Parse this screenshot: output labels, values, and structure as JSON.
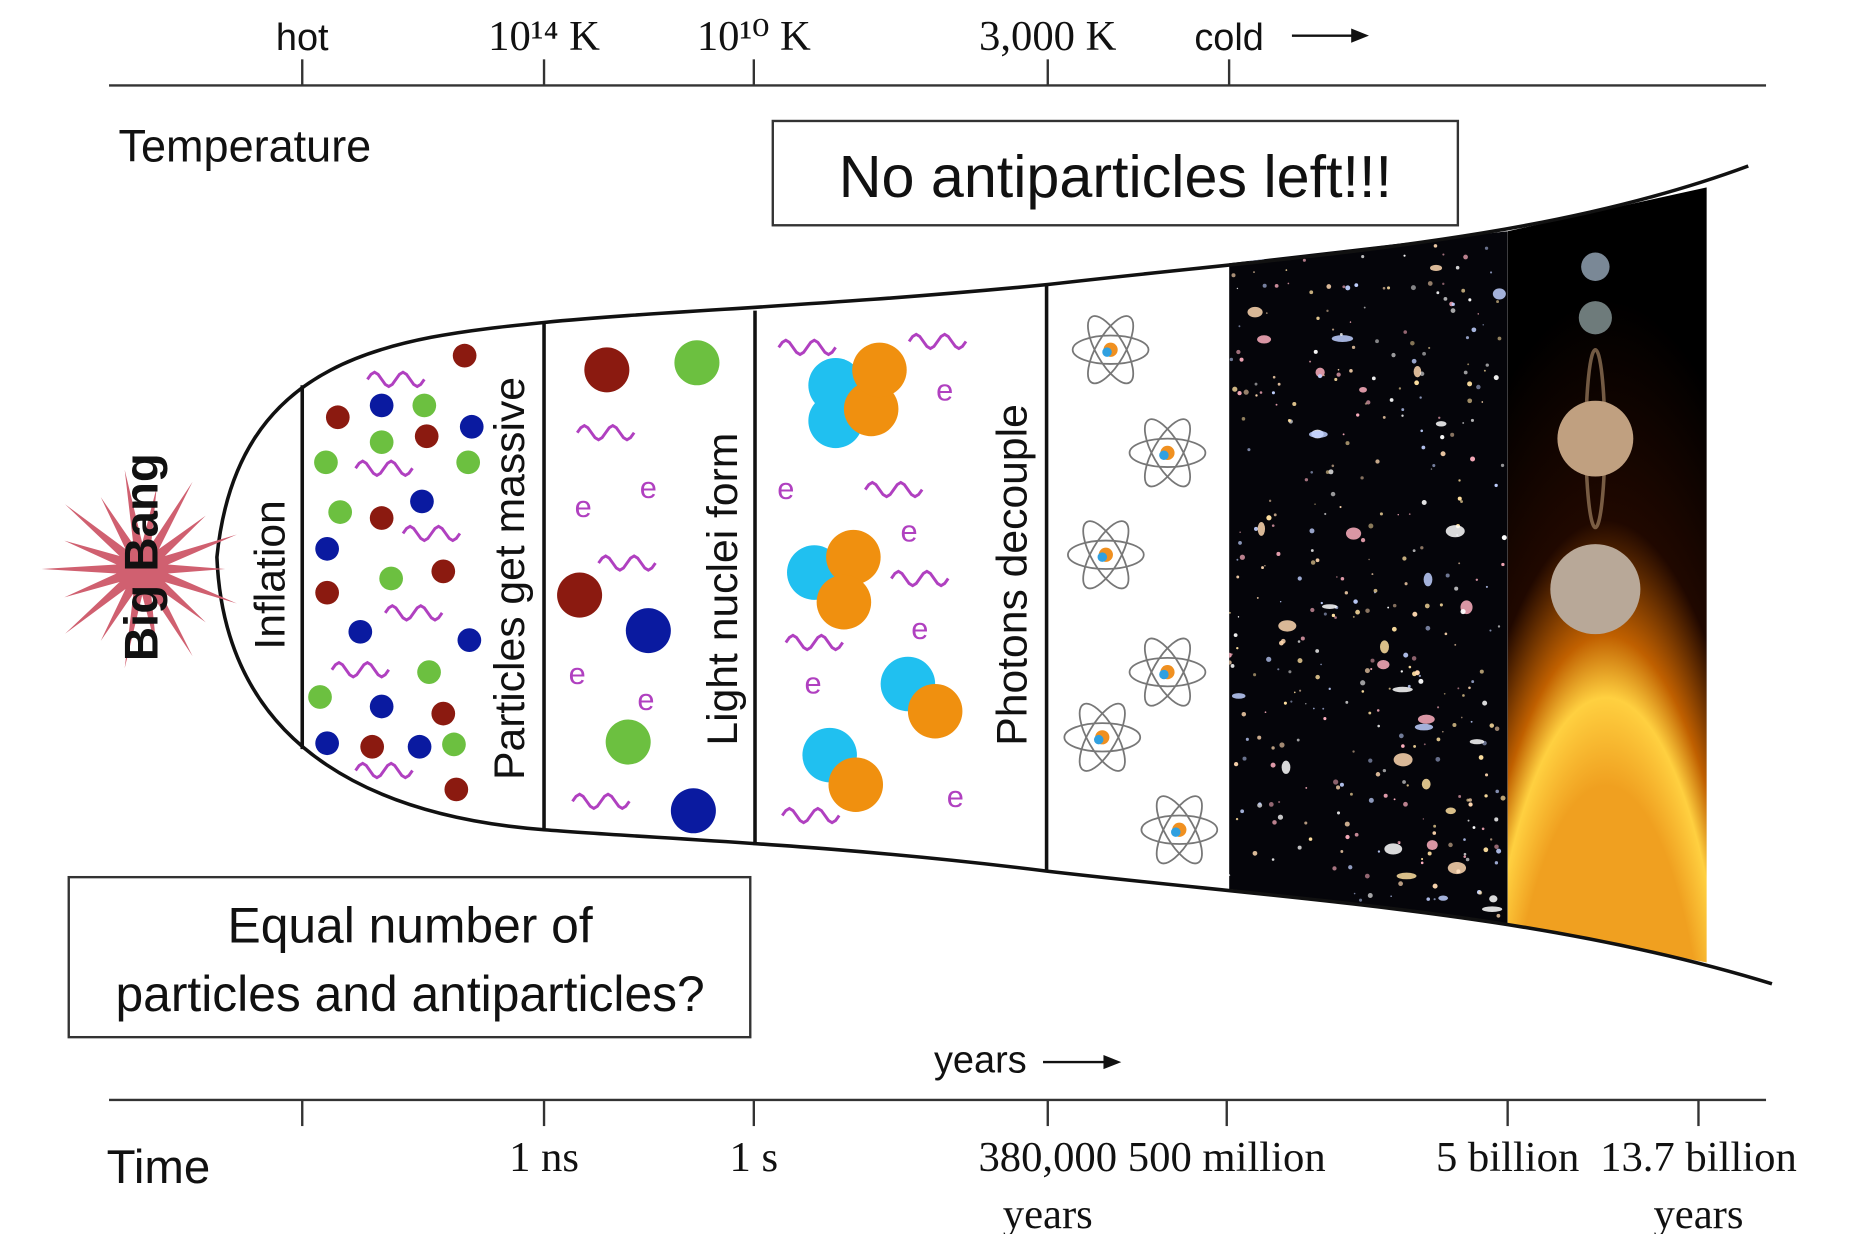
{
  "temperature_axis": {
    "label": "Temperature",
    "ticks": [
      "hot",
      "10¹⁴ K",
      "10¹⁰ K",
      "3,000 K",
      "cold"
    ]
  },
  "time_axis": {
    "label": "Time",
    "direction_label": "years",
    "ticks": [
      [
        "1 ns"
      ],
      [
        "1 s"
      ],
      [
        "380,000",
        "years"
      ],
      [
        "500 million"
      ],
      [
        "5 billion"
      ],
      [
        "13.7 billion",
        "years"
      ]
    ]
  },
  "event": "Big Bang",
  "stages": [
    "Inflation",
    "Particles get massive",
    "Light nuclei form",
    "Photons decouple"
  ],
  "callouts": {
    "top": "No antiparticles left!!!",
    "bottom": [
      "Equal number of",
      "particles and antiparticles?"
    ]
  },
  "electron_symbol": "e"
}
